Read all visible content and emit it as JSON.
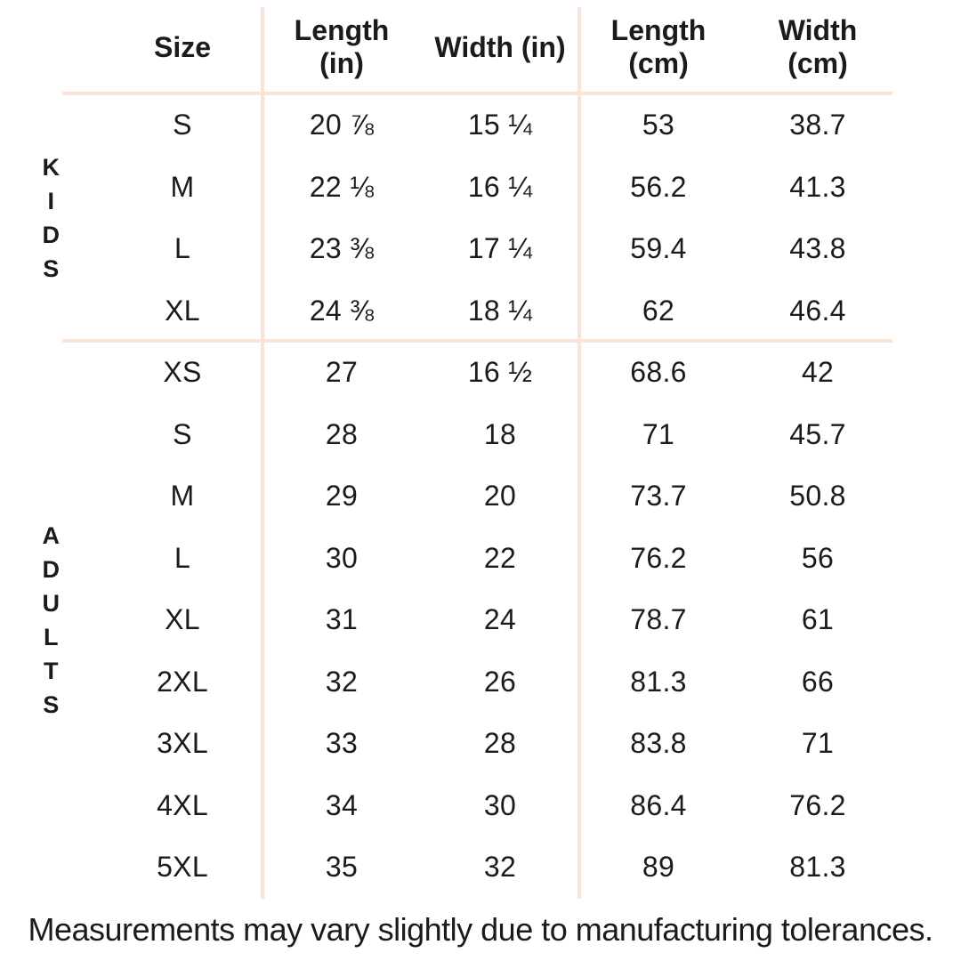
{
  "colors": {
    "background": "#ffffff",
    "divider": "#fae4da",
    "text": "#1b1b1e"
  },
  "table": {
    "headers": {
      "size": "Size",
      "length_in": "Length\n(in)",
      "width_in": "Width (in)",
      "length_cm": "Length\n(cm)",
      "width_cm": "Width\n(cm)"
    },
    "groups": [
      {
        "label": "KIDS",
        "rows": [
          {
            "size": "S",
            "length_in": "20 ⅞",
            "width_in": "15 ¼",
            "length_cm": "53",
            "width_cm": "38.7"
          },
          {
            "size": "M",
            "length_in": "22 ⅛",
            "width_in": "16 ¼",
            "length_cm": "56.2",
            "width_cm": "41.3"
          },
          {
            "size": "L",
            "length_in": "23 ⅜",
            "width_in": "17 ¼",
            "length_cm": "59.4",
            "width_cm": "43.8"
          },
          {
            "size": "XL",
            "length_in": "24 ⅜",
            "width_in": "18 ¼",
            "length_cm": "62",
            "width_cm": "46.4"
          }
        ]
      },
      {
        "label": "ADULTS",
        "rows": [
          {
            "size": "XS",
            "length_in": "27",
            "width_in": "16 ½",
            "length_cm": "68.6",
            "width_cm": "42"
          },
          {
            "size": "S",
            "length_in": "28",
            "width_in": "18",
            "length_cm": "71",
            "width_cm": "45.7"
          },
          {
            "size": "M",
            "length_in": "29",
            "width_in": "20",
            "length_cm": "73.7",
            "width_cm": "50.8"
          },
          {
            "size": "L",
            "length_in": "30",
            "width_in": "22",
            "length_cm": "76.2",
            "width_cm": "56"
          },
          {
            "size": "XL",
            "length_in": "31",
            "width_in": "24",
            "length_cm": "78.7",
            "width_cm": "61"
          },
          {
            "size": "2XL",
            "length_in": "32",
            "width_in": "26",
            "length_cm": "81.3",
            "width_cm": "66"
          },
          {
            "size": "3XL",
            "length_in": "33",
            "width_in": "28",
            "length_cm": "83.8",
            "width_cm": "71"
          },
          {
            "size": "4XL",
            "length_in": "34",
            "width_in": "30",
            "length_cm": "86.4",
            "width_cm": "76.2"
          },
          {
            "size": "5XL",
            "length_in": "35",
            "width_in": "32",
            "length_cm": "89",
            "width_cm": "81.3"
          }
        ]
      }
    ]
  },
  "footer": {
    "note": "Measurements may vary slightly due to manufacturing tolerances."
  },
  "chart_data": {
    "type": "table",
    "columns": [
      "Size",
      "Length (in)",
      "Width (in)",
      "Length (cm)",
      "Width (cm)"
    ],
    "row_groups": [
      {
        "group": "KIDS",
        "rows": [
          [
            "S",
            "20 7/8",
            "15 1/4",
            53,
            38.7
          ],
          [
            "M",
            "22 1/8",
            "16 1/4",
            56.2,
            41.3
          ],
          [
            "L",
            "23 3/8",
            "17 1/4",
            59.4,
            43.8
          ],
          [
            "XL",
            "24 3/8",
            "18 1/4",
            62,
            46.4
          ]
        ]
      },
      {
        "group": "ADULTS",
        "rows": [
          [
            "XS",
            27,
            "16 1/2",
            68.6,
            42
          ],
          [
            "S",
            28,
            18,
            71,
            45.7
          ],
          [
            "M",
            29,
            20,
            73.7,
            50.8
          ],
          [
            "L",
            30,
            22,
            76.2,
            56
          ],
          [
            "XL",
            31,
            24,
            78.7,
            61
          ],
          [
            "2XL",
            32,
            26,
            81.3,
            66
          ],
          [
            "3XL",
            33,
            28,
            83.8,
            71
          ],
          [
            "4XL",
            34,
            30,
            86.4,
            76.2
          ],
          [
            "5XL",
            35,
            32,
            89,
            81.3
          ]
        ]
      }
    ],
    "note": "Measurements may vary slightly due to manufacturing tolerances."
  }
}
